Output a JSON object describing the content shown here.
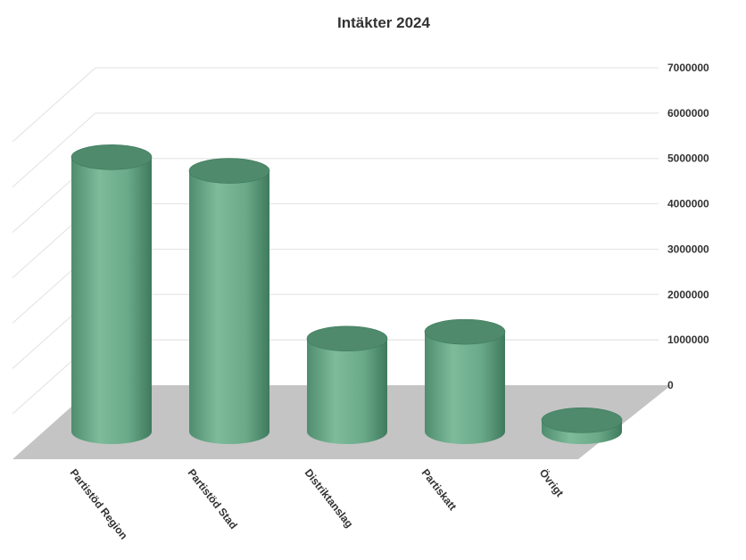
{
  "chart_data": {
    "type": "bar",
    "style": "3d-cylinder",
    "title": "Intäkter 2024",
    "categories": [
      "Partistöd Region",
      "Partistöd Stad",
      "Distriktanslag",
      "Partiskatt",
      "Övrigt"
    ],
    "series": [
      {
        "values": [
          6050000,
          5750000,
          2050000,
          2200000,
          250000
        ]
      }
    ],
    "y_ticks": [
      "0",
      "1000000",
      "2000000",
      "3000000",
      "4000000",
      "5000000",
      "6000000",
      "7000000"
    ],
    "ylim": [
      0,
      7000000
    ],
    "grid": true,
    "legend": false,
    "colors": {
      "bar": "#6aaa89",
      "bar_dark": "#3f7a5d",
      "bar_top": "#4e8a6b",
      "floor": "#c4c4c4"
    }
  }
}
